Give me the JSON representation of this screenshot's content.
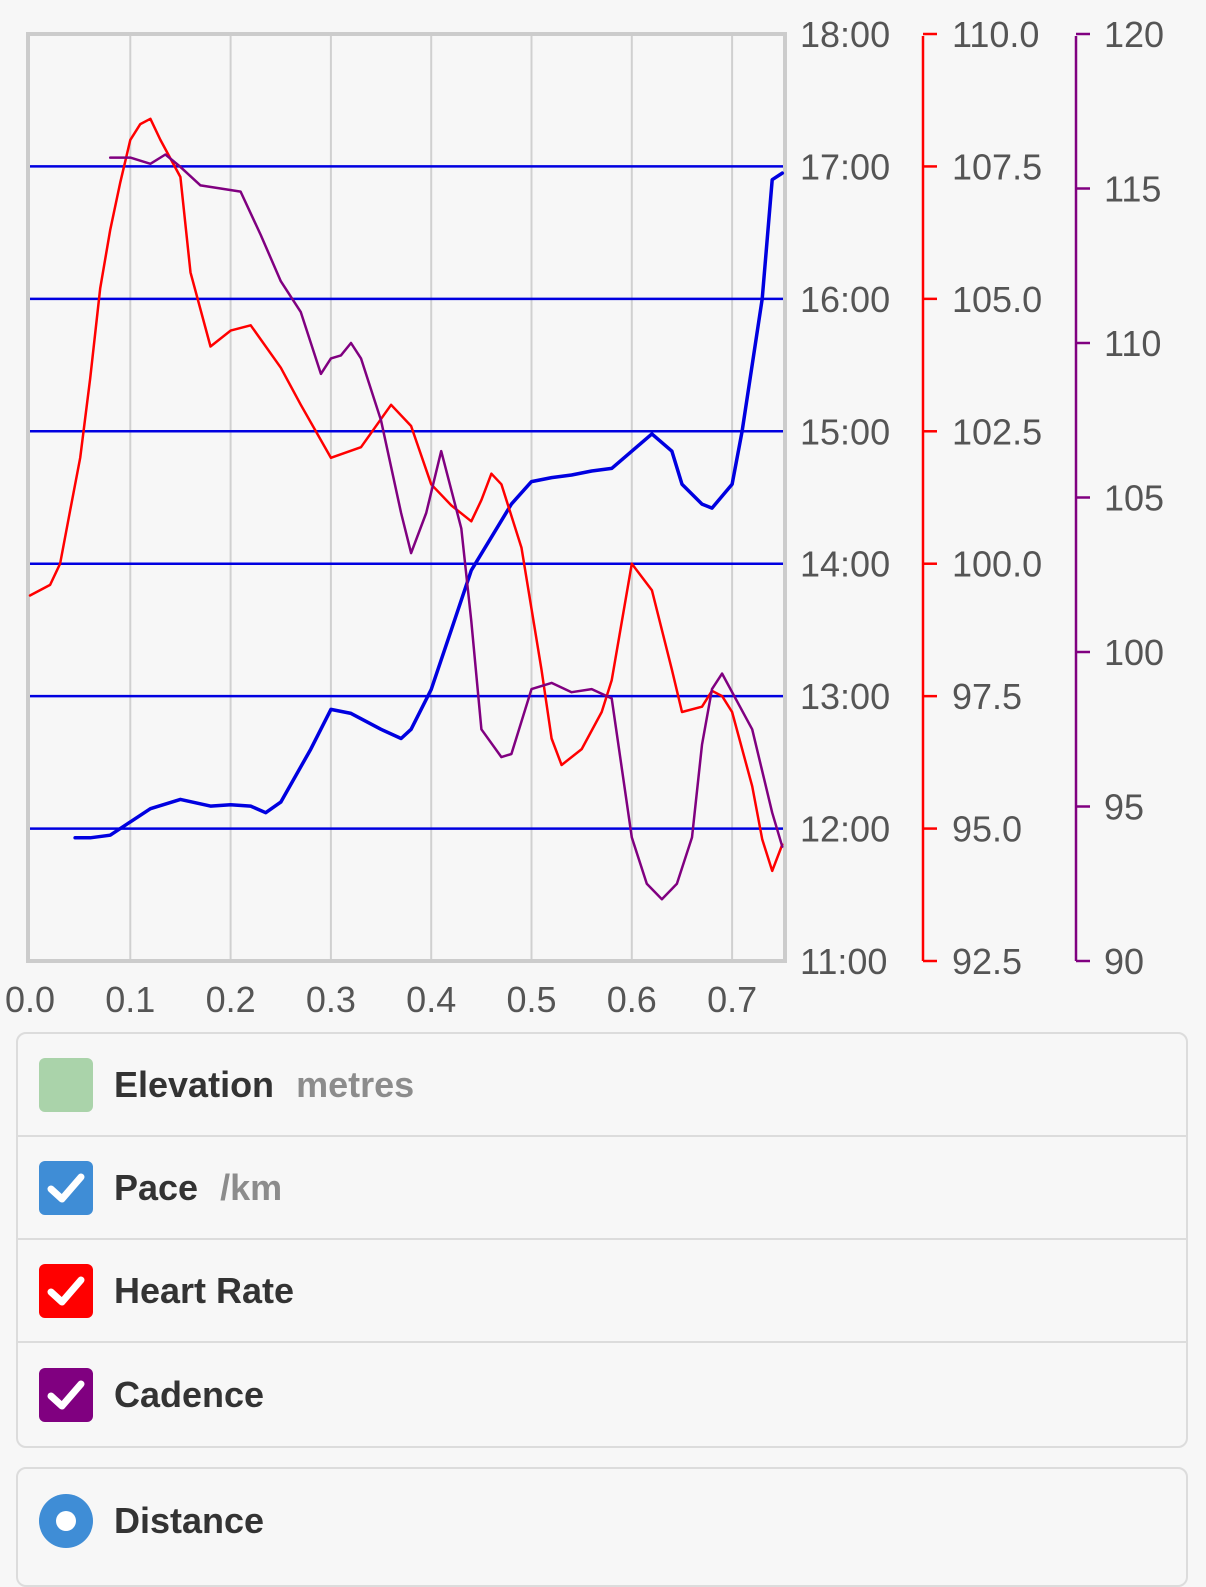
{
  "chart_data": {
    "type": "line",
    "title": "",
    "grid": true,
    "x_axis": {
      "range": [
        0.0,
        0.75
      ],
      "ticks": [
        "0.0",
        "0.1",
        "0.2",
        "0.3",
        "0.4",
        "0.5",
        "0.6",
        "0.7"
      ],
      "tick_values": [
        0.0,
        0.1,
        0.2,
        0.3,
        0.4,
        0.5,
        0.6,
        0.7
      ]
    },
    "axes": {
      "pace": {
        "color": "#0000e0",
        "range_min": [
          11,
          18
        ],
        "ticks": [
          "18:00",
          "17:00",
          "16:00",
          "15:00",
          "14:00",
          "13:00",
          "12:00",
          "11:00"
        ],
        "tick_values": [
          18,
          17,
          16,
          15,
          14,
          13,
          12,
          11
        ]
      },
      "heart_rate": {
        "color": "#ff0000",
        "range": [
          92.5,
          110.0
        ],
        "ticks": [
          "110.0",
          "107.5",
          "105.0",
          "102.5",
          "100.0",
          "97.5",
          "95.0",
          "92.5"
        ],
        "tick_values": [
          110.0,
          107.5,
          105.0,
          102.5,
          100.0,
          97.5,
          95.0,
          92.5
        ]
      },
      "cadence": {
        "color": "#800080",
        "range": [
          90,
          120
        ],
        "ticks": [
          "120",
          "115",
          "110",
          "105",
          "100",
          "95",
          "90"
        ],
        "tick_values": [
          120,
          115,
          110,
          105,
          100,
          95,
          90
        ]
      }
    },
    "series": [
      {
        "key": "pace",
        "axis": "pace",
        "color": "#0000e0",
        "x": [
          0.045,
          0.06,
          0.08,
          0.1,
          0.12,
          0.15,
          0.18,
          0.2,
          0.22,
          0.235,
          0.25,
          0.28,
          0.3,
          0.32,
          0.35,
          0.37,
          0.38,
          0.4,
          0.42,
          0.44,
          0.46,
          0.48,
          0.5,
          0.52,
          0.54,
          0.56,
          0.58,
          0.6,
          0.62,
          0.64,
          0.65,
          0.67,
          0.68,
          0.7,
          0.71,
          0.73,
          0.74,
          0.75
        ],
        "y": [
          11.93,
          11.93,
          11.95,
          12.05,
          12.15,
          12.22,
          12.17,
          12.18,
          12.17,
          12.12,
          12.2,
          12.6,
          12.9,
          12.87,
          12.75,
          12.68,
          12.75,
          13.05,
          13.5,
          13.95,
          14.2,
          14.45,
          14.62,
          14.65,
          14.67,
          14.7,
          14.72,
          14.85,
          14.98,
          14.85,
          14.6,
          14.45,
          14.42,
          14.6,
          15.0,
          16.0,
          16.9,
          16.95
        ]
      },
      {
        "key": "heart_rate",
        "axis": "heart_rate",
        "color": "#ff0000",
        "x": [
          0.0,
          0.02,
          0.03,
          0.04,
          0.05,
          0.06,
          0.07,
          0.08,
          0.09,
          0.1,
          0.11,
          0.12,
          0.13,
          0.15,
          0.16,
          0.18,
          0.2,
          0.22,
          0.25,
          0.27,
          0.3,
          0.33,
          0.36,
          0.38,
          0.4,
          0.42,
          0.44,
          0.45,
          0.46,
          0.47,
          0.49,
          0.51,
          0.52,
          0.53,
          0.55,
          0.57,
          0.58,
          0.6,
          0.62,
          0.64,
          0.65,
          0.67,
          0.68,
          0.69,
          0.7,
          0.72,
          0.73,
          0.74,
          0.75
        ],
        "y": [
          99.4,
          99.6,
          100.0,
          101.0,
          102.0,
          103.5,
          105.2,
          106.3,
          107.2,
          108.0,
          108.3,
          108.4,
          108.0,
          107.3,
          105.5,
          104.1,
          104.4,
          104.5,
          103.7,
          103.0,
          102.0,
          102.2,
          103.0,
          102.6,
          101.5,
          101.1,
          100.8,
          101.2,
          101.7,
          101.5,
          100.3,
          98.0,
          96.7,
          96.2,
          96.5,
          97.2,
          97.8,
          100.0,
          99.5,
          98.0,
          97.2,
          97.3,
          97.6,
          97.5,
          97.2,
          95.8,
          94.8,
          94.2,
          94.7
        ]
      },
      {
        "key": "cadence",
        "axis": "cadence",
        "color": "#800080",
        "x": [
          0.08,
          0.1,
          0.12,
          0.135,
          0.15,
          0.17,
          0.19,
          0.21,
          0.23,
          0.25,
          0.27,
          0.29,
          0.3,
          0.31,
          0.32,
          0.33,
          0.35,
          0.37,
          0.38,
          0.395,
          0.41,
          0.43,
          0.44,
          0.45,
          0.47,
          0.48,
          0.5,
          0.52,
          0.54,
          0.56,
          0.58,
          0.6,
          0.615,
          0.63,
          0.645,
          0.66,
          0.67,
          0.68,
          0.69,
          0.72,
          0.74,
          0.75
        ],
        "y": [
          116.0,
          116.0,
          115.8,
          116.1,
          115.7,
          115.1,
          115.0,
          114.9,
          113.5,
          112.0,
          111.0,
          109.0,
          109.5,
          109.6,
          110.0,
          109.5,
          107.5,
          104.5,
          103.2,
          104.5,
          106.5,
          104.0,
          101.0,
          97.5,
          96.6,
          96.7,
          98.8,
          99.0,
          98.7,
          98.8,
          98.5,
          94.0,
          92.5,
          92.0,
          92.5,
          94.0,
          97.0,
          98.8,
          99.3,
          97.5,
          94.8,
          93.7
        ]
      }
    ]
  },
  "legend": {
    "elevation": {
      "label": "Elevation",
      "unit": "metres",
      "color": "#aad3aa",
      "checked": false
    },
    "pace": {
      "label": "Pace",
      "unit": "/km",
      "color": "#3f8dd6",
      "checked": true
    },
    "heart_rate": {
      "label": "Heart Rate",
      "color": "#ff0000",
      "checked": true
    },
    "cadence": {
      "label": "Cadence",
      "color": "#800080",
      "checked": true
    }
  },
  "xaxis_selector": {
    "distance": {
      "label": "Distance",
      "color": "#3f8dd6",
      "selected": true
    }
  }
}
